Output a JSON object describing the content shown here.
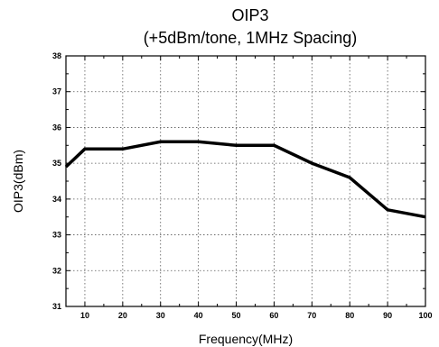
{
  "chart_data": {
    "type": "line",
    "title": "OIP3",
    "subtitle": "(+5dBm/tone, 1MHz Spacing)",
    "xlabel": "Frequency(MHz)",
    "ylabel": "OIP3(dBm)",
    "xlim": [
      5,
      100
    ],
    "ylim": [
      31,
      38
    ],
    "xticks": [
      10,
      20,
      30,
      40,
      50,
      60,
      70,
      80,
      90,
      100
    ],
    "yticks": [
      31,
      32,
      33,
      34,
      35,
      36,
      37,
      38
    ],
    "grid": true,
    "series": [
      {
        "x": [
          5,
          10,
          20,
          30,
          40,
          50,
          60,
          70,
          80,
          90,
          100
        ],
        "y": [
          34.9,
          35.4,
          35.4,
          35.6,
          35.6,
          35.5,
          35.5,
          35.0,
          34.6,
          33.7,
          33.5
        ]
      }
    ]
  }
}
